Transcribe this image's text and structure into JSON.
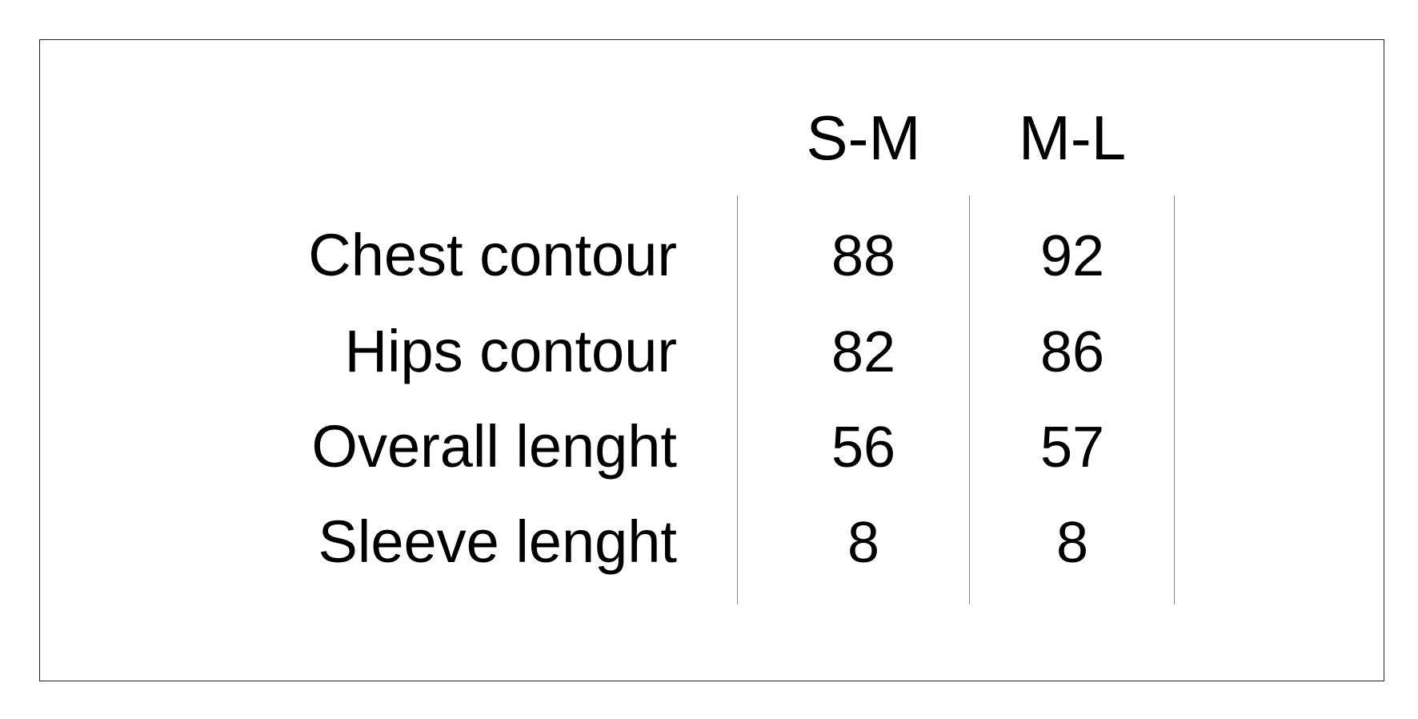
{
  "table": {
    "columns": [
      "S-M",
      "M-L"
    ],
    "rows": [
      {
        "label": "Chest contour",
        "values": [
          "88",
          "92"
        ]
      },
      {
        "label": "Hips contour",
        "values": [
          "82",
          "86"
        ]
      },
      {
        "label": "Overall lenght",
        "values": [
          "56",
          "57"
        ]
      },
      {
        "label": "Sleeve lenght",
        "values": [
          "8",
          "8"
        ]
      }
    ]
  }
}
